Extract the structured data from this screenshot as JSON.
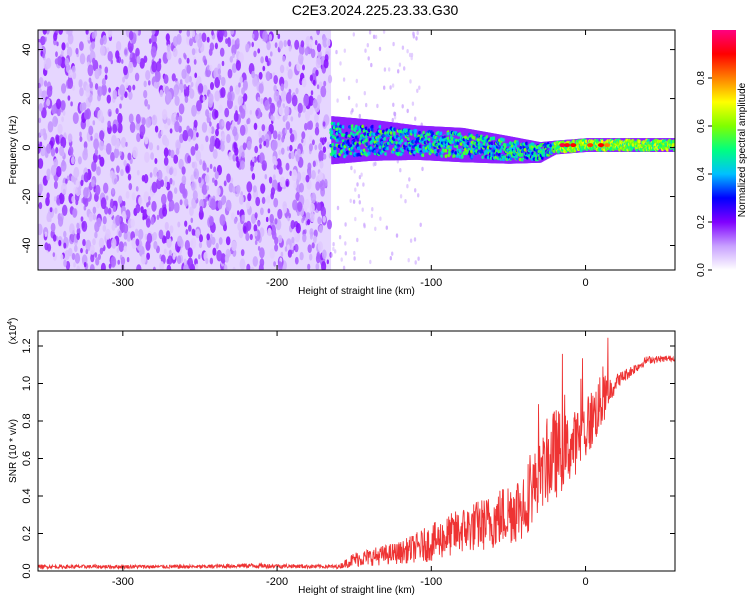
{
  "title": "C2E3.2024.225.23.33.G30",
  "chart_data": [
    {
      "type": "heatmap",
      "xlabel": "Height of straight line (km)",
      "ylabel": "Frequency (Hz)",
      "xlim": [
        -355,
        58
      ],
      "ylim": [
        -50,
        48
      ],
      "xticks": [
        -300,
        -200,
        -100,
        0
      ],
      "yticks": [
        -40,
        -20,
        0,
        20,
        40
      ],
      "colorbar": {
        "label": "Normalized spectral amplitude",
        "ticks": [
          "0.0",
          "0.2",
          "0.4",
          "0.6",
          "0.8"
        ],
        "range": [
          0,
          1
        ],
        "colors": [
          "#ffffff",
          "#c8a0ff",
          "#8000ff",
          "#0000ff",
          "#00c0ff",
          "#00ff80",
          "#80ff00",
          "#ffff00",
          "#ff8000",
          "#ff0000",
          "#ff0080"
        ]
      },
      "noise_region_x": [
        -355,
        -165
      ],
      "signal_track": [
        {
          "x": -165,
          "freq": 3,
          "halfwidth": 7
        },
        {
          "x": -140,
          "freq": 3,
          "halfwidth": 6
        },
        {
          "x": -110,
          "freq": 2,
          "halfwidth": 5
        },
        {
          "x": -80,
          "freq": 1,
          "halfwidth": 5
        },
        {
          "x": -50,
          "freq": -1,
          "halfwidth": 4
        },
        {
          "x": -30,
          "freq": -2,
          "halfwidth": 3
        },
        {
          "x": -20,
          "freq": 0,
          "halfwidth": 2
        },
        {
          "x": 0,
          "freq": 1,
          "halfwidth": 2
        },
        {
          "x": 30,
          "freq": 1,
          "halfwidth": 2
        },
        {
          "x": 58,
          "freq": 1,
          "halfwidth": 2
        }
      ]
    },
    {
      "type": "line",
      "xlabel": "Height of straight line (km)",
      "ylabel": "SNR (10 * v/v)",
      "y_multiplier": "(x10",
      "y_multiplier_exp": "4",
      "y_multiplier_close": ")",
      "xlim": [
        -355,
        58
      ],
      "ylim": [
        0,
        1.28
      ],
      "xticks": [
        -300,
        -200,
        -100,
        0
      ],
      "yticks": [
        "0.0",
        "0.2",
        "0.4",
        "0.6",
        "0.8",
        "1.0",
        "1.2"
      ],
      "series_color": "#ee3333",
      "envelope": [
        {
          "x": -355,
          "base": 0.02,
          "amp": 0.02
        },
        {
          "x": -250,
          "base": 0.02,
          "amp": 0.02
        },
        {
          "x": -220,
          "base": 0.025,
          "amp": 0.025
        },
        {
          "x": -160,
          "base": 0.02,
          "amp": 0.02
        },
        {
          "x": -150,
          "base": 0.05,
          "amp": 0.08
        },
        {
          "x": -120,
          "base": 0.08,
          "amp": 0.12
        },
        {
          "x": -100,
          "base": 0.12,
          "amp": 0.2
        },
        {
          "x": -80,
          "base": 0.18,
          "amp": 0.25
        },
        {
          "x": -60,
          "base": 0.22,
          "amp": 0.3
        },
        {
          "x": -40,
          "base": 0.3,
          "amp": 0.4
        },
        {
          "x": -30,
          "base": 0.45,
          "amp": 0.35
        },
        {
          "x": -20,
          "base": 0.55,
          "amp": 0.5
        },
        {
          "x": -10,
          "base": 0.6,
          "amp": 0.35
        },
        {
          "x": 0,
          "base": 0.7,
          "amp": 0.35
        },
        {
          "x": 10,
          "base": 0.85,
          "amp": 0.3
        },
        {
          "x": 20,
          "base": 1.0,
          "amp": 0.08
        },
        {
          "x": 40,
          "base": 1.12,
          "amp": 0.04
        },
        {
          "x": 58,
          "base": 1.13,
          "amp": 0.03
        }
      ]
    }
  ]
}
